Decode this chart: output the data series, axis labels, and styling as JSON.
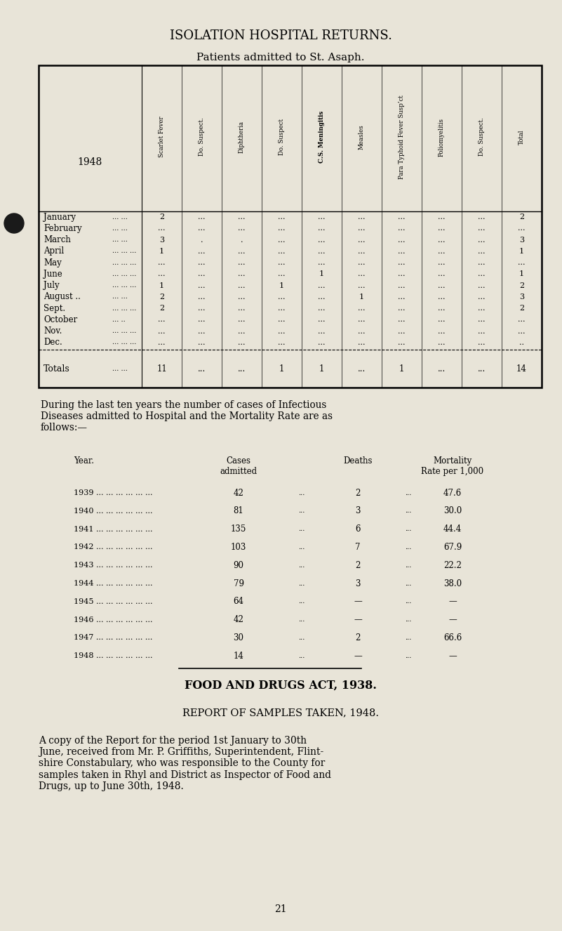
{
  "bg_color": "#e8e4d8",
  "title1": "ISOLATION HOSPITAL RETURNS.",
  "title2": "Patients admitted to St. Asaph.",
  "year_label": "1948",
  "col_headers": [
    "Scarlet Fever",
    "Do. Suspect.",
    "Diphtheria",
    "Do. Suspect",
    "C.S. Meningitis",
    "Measles",
    "Para Typhoid Fever Susp’ct",
    "Poliomyelitis",
    "Do. Suspect.",
    "Total"
  ],
  "months": [
    "January",
    "February",
    "March",
    "April",
    "May",
    "June",
    "July",
    "August ..",
    "Sept.",
    "October",
    "Nov.",
    "Dec."
  ],
  "month_dots": [
    "... ...",
    "... ...",
    "... ...",
    "... ... ...",
    "... ... ...",
    "... ... ...",
    "... ... ...",
    "... ...",
    "... ... ...",
    "... ..",
    "... ... ...",
    "... ... ..."
  ],
  "table_data": [
    [
      "2",
      "...",
      "...",
      "...",
      "...",
      "...",
      "...",
      "...",
      "...",
      "2"
    ],
    [
      "...",
      "...",
      "...",
      "...",
      "...",
      "...",
      "...",
      "...",
      "...",
      "..."
    ],
    [
      "3",
      ".",
      ".",
      "...",
      "...",
      "...",
      "...",
      "...",
      "...",
      "3"
    ],
    [
      "1",
      "...",
      "...",
      "...",
      "...",
      "...",
      "...",
      "...",
      "...",
      "1"
    ],
    [
      "...",
      "...",
      "...",
      "...",
      "...",
      "...",
      "...",
      "...",
      "...",
      "..."
    ],
    [
      "...",
      "...",
      "...",
      "...",
      "1",
      "...",
      "...",
      "...",
      "...",
      "1"
    ],
    [
      "1",
      "...",
      "...",
      "1",
      "...",
      "...",
      "...",
      "...",
      "...",
      "2"
    ],
    [
      "2",
      "...",
      "...",
      "...",
      "...",
      "1",
      "...",
      "...",
      "...",
      "3"
    ],
    [
      "2",
      "...",
      "...",
      "...",
      "...",
      "...",
      "...",
      "...",
      "...",
      "2"
    ],
    [
      "...",
      "...",
      "...",
      "...",
      "...",
      "...",
      "...",
      "...",
      "...",
      "..."
    ],
    [
      "...",
      "...",
      "...",
      "...",
      "...",
      "...",
      "...",
      "...",
      "...",
      "..."
    ],
    [
      "...",
      "...",
      "...",
      "...",
      "...",
      "...",
      "...",
      "...",
      "...",
      ".."
    ]
  ],
  "totals_row": [
    "11",
    "...",
    "...",
    "1",
    "1",
    "...",
    "1",
    "...",
    "...",
    "14"
  ],
  "paragraph": "During the last ten years the number of cases of Infectious\nDiseases admitted to Hospital and the Mortality Rate are as\nfollows:—",
  "stats_data": [
    [
      "1939 ... ... ... ... ... ...",
      "42",
      "2",
      "47.6"
    ],
    [
      "1940 ... ... ... ... ... ...",
      "81",
      "3",
      "30.0"
    ],
    [
      "1941 ... ... ... ... ... ...",
      "135",
      "6",
      "44.4"
    ],
    [
      "1942 ... ... ... ... ... ...",
      "103",
      "7",
      "67.9"
    ],
    [
      "1943 ... ... ... ... ... ...",
      "90",
      "2",
      "22.2"
    ],
    [
      "1944 ... ... ... ... ... ...",
      "79",
      "3",
      "38.0"
    ],
    [
      "1945 ... ... ... ... ... ...",
      "64",
      "—",
      "—"
    ],
    [
      "1946 ... ... ... ... ... ...",
      "42",
      "—",
      "—"
    ],
    [
      "1947 ... ... ... ... ... ...",
      "30",
      "2",
      "66.6"
    ],
    [
      "1948 ... ... ... ... ... ...",
      "14",
      "—",
      "—"
    ]
  ],
  "food_title": "FOOD AND DRUGS ACT, 1938.",
  "food_subtitle": "REPORT OF SAMPLES TAKEN, 1948.",
  "food_body": "A copy of the Report for the period 1st January to 30th\nJune, received from Mr. P. Griffiths, Superintendent, Flint-\nshire Constabulary, who was responsible to the County for\nsamples taken in Rhyl and District as Inspector of Food and\nDrugs, up to June 30th, 1948.",
  "page_num": "21"
}
